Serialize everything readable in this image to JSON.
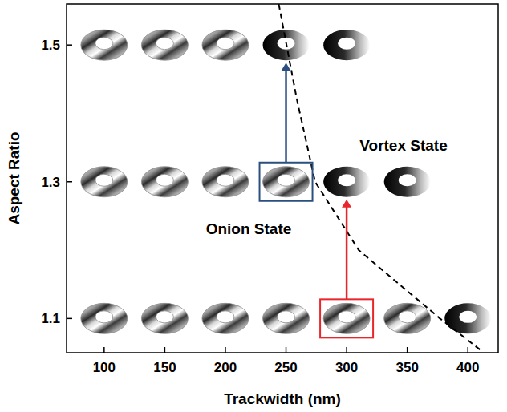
{
  "chart_data": {
    "type": "scatter",
    "x_label": "Trackwidth (nm)",
    "y_label": "Aspect Ratio",
    "xlim": [
      69,
      425
    ],
    "ylim": [
      1.05,
      1.56
    ],
    "xticks": [
      100,
      150,
      200,
      250,
      300,
      350,
      400
    ],
    "yticks": [
      1.1,
      1.3,
      1.5
    ],
    "grid": false,
    "series": [
      {
        "type": "scatter",
        "marker": "onion",
        "x": [
          100,
          150,
          200,
          100,
          150,
          200,
          250,
          100,
          150,
          200,
          250,
          300,
          350
        ],
        "values": [
          1.5,
          1.5,
          1.5,
          1.3,
          1.3,
          1.3,
          1.3,
          1.1,
          1.1,
          1.1,
          1.1,
          1.1,
          1.1
        ]
      },
      {
        "type": "scatter",
        "marker": "vortex",
        "x": [
          250,
          300,
          300,
          350,
          400
        ],
        "values": [
          1.5,
          1.5,
          1.3,
          1.3,
          1.1
        ]
      },
      {
        "type": "line",
        "line_style": "dashed",
        "color": "#000000",
        "x": [
          244,
          259,
          274,
          310,
          377,
          411
        ],
        "values": [
          1.56,
          1.42,
          1.3,
          1.2,
          1.1,
          1.053
        ]
      }
    ],
    "arrows": [
      {
        "x": 250,
        "from": 1.3,
        "to": 1.5,
        "color": "#2b5080"
      },
      {
        "x": 300,
        "from": 1.1,
        "to": 1.3,
        "color": "#e8262b"
      }
    ],
    "annotations": [
      {
        "text": "Onion State"
      },
      {
        "text": "Vortex State"
      }
    ]
  }
}
